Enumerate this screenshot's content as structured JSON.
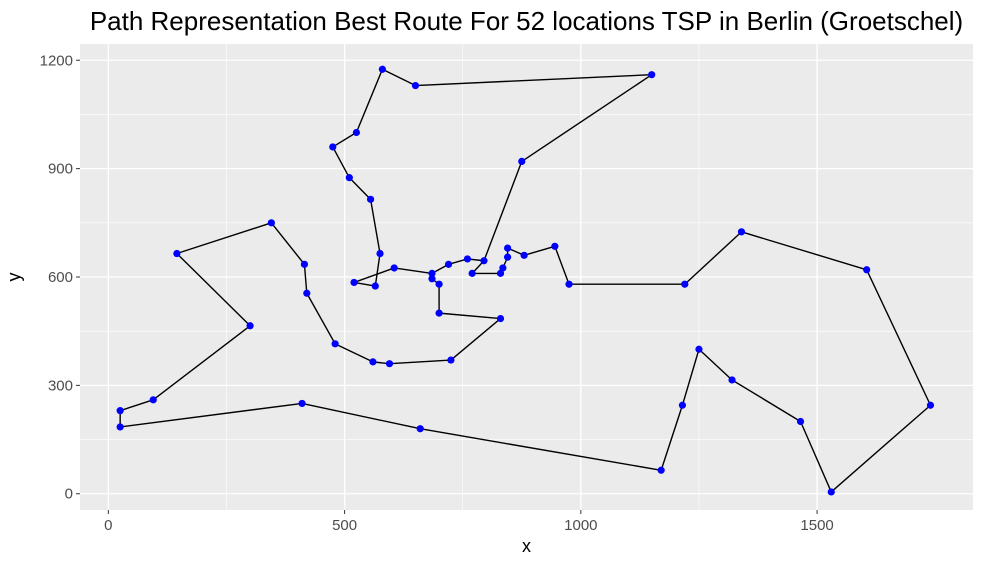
{
  "chart_data": {
    "type": "scatter",
    "title": "Path Representation Best Route For 52 locations TSP in Berlin (Groetschel)",
    "xlabel": "x",
    "ylabel": "y",
    "xlim": [
      -60,
      1830
    ],
    "ylim": [
      -45,
      1245
    ],
    "x_ticks": [
      0,
      500,
      1000,
      1500
    ],
    "y_ticks": [
      0,
      300,
      600,
      900,
      1200
    ],
    "x_tick_labels": [
      "0",
      "500",
      "1000",
      "1500"
    ],
    "y_tick_labels": [
      "0",
      "300",
      "600",
      "900",
      "1200"
    ],
    "grid": true,
    "colors": {
      "point": "#0000ff",
      "path": "#000000",
      "panel": "#ebebeb",
      "grid": "#ffffff"
    },
    "route": [
      [
        25,
        185
      ],
      [
        410,
        250
      ],
      [
        660,
        180
      ],
      [
        1170,
        65
      ],
      [
        1215,
        245
      ],
      [
        1250,
        400
      ],
      [
        1320,
        315
      ],
      [
        1465,
        200
      ],
      [
        1530,
        5
      ],
      [
        1740,
        245
      ],
      [
        1605,
        620
      ],
      [
        1340,
        725
      ],
      [
        1220,
        580
      ],
      [
        975,
        580
      ],
      [
        945,
        685
      ],
      [
        880,
        660
      ],
      [
        845,
        680
      ],
      [
        845,
        655
      ],
      [
        835,
        625
      ],
      [
        830,
        610
      ],
      [
        770,
        610
      ],
      [
        795,
        645
      ],
      [
        760,
        650
      ],
      [
        720,
        635
      ],
      [
        685,
        610
      ],
      [
        685,
        595
      ],
      [
        700,
        580
      ],
      [
        700,
        500
      ],
      [
        830,
        485
      ],
      [
        725,
        370
      ],
      [
        595,
        360
      ],
      [
        560,
        365
      ],
      [
        480,
        415
      ],
      [
        420,
        555
      ],
      [
        415,
        635
      ],
      [
        345,
        750
      ],
      [
        145,
        665
      ],
      [
        300,
        465
      ],
      [
        95,
        260
      ],
      [
        25,
        230
      ],
      [
        25,
        185
      ]
    ],
    "route_upper": [
      [
        565,
        575
      ],
      [
        520,
        585
      ],
      [
        605,
        625
      ],
      [
        685,
        610
      ]
    ],
    "route_north": [
      [
        575,
        665
      ],
      [
        555,
        815
      ],
      [
        510,
        875
      ],
      [
        475,
        960
      ],
      [
        525,
        1000
      ],
      [
        580,
        1175
      ],
      [
        650,
        1130
      ],
      [
        1150,
        1160
      ],
      [
        875,
        920
      ],
      [
        795,
        645
      ]
    ],
    "route_link": [
      [
        565,
        575
      ],
      [
        575,
        665
      ]
    ]
  }
}
